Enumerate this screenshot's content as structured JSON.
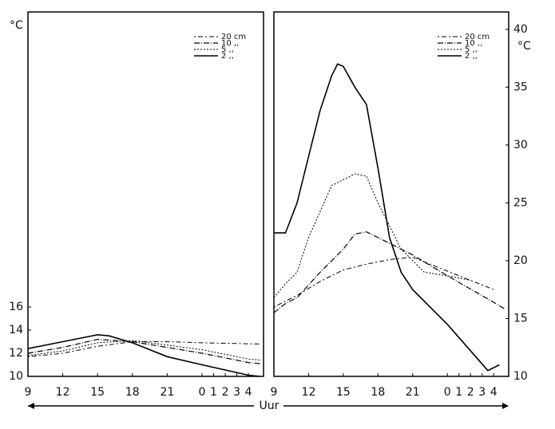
{
  "chart_data": [
    {
      "type": "line",
      "ylabel": "°C",
      "xlabel": "Uur",
      "xlim": [
        9,
        29.3
      ],
      "ylim": [
        10,
        41.5
      ],
      "xticks": [
        9,
        12,
        15,
        18,
        21,
        {
          "value": 24,
          "label": "0"
        },
        {
          "value": 25,
          "label": "1"
        },
        {
          "value": 26,
          "label": "2"
        },
        {
          "value": 27,
          "label": "3"
        },
        {
          "value": 28,
          "label": "4"
        }
      ],
      "yticks": [
        10,
        12,
        14,
        16
      ],
      "series": [
        {
          "name": "20 cm",
          "color": "#000000",
          "x": [
            9,
            12,
            15,
            18,
            21,
            24,
            29
          ],
          "values": [
            11.7,
            12.0,
            12.6,
            13.0,
            13.0,
            12.9,
            12.8
          ]
        },
        {
          "name": "10 ,,",
          "color": "#000000",
          "x": [
            9,
            12,
            15,
            18,
            21,
            24,
            28,
            29
          ],
          "values": [
            12.0,
            12.5,
            13.2,
            13.0,
            12.5,
            12.0,
            11.2,
            11.1
          ]
        },
        {
          "name": "5 ,,",
          "color": "#000000",
          "x": [
            9,
            12,
            15,
            18,
            21,
            24,
            28,
            29
          ],
          "values": [
            11.8,
            12.2,
            12.9,
            13.1,
            12.7,
            12.3,
            11.5,
            11.4
          ]
        },
        {
          "name": "2 ,,",
          "color": "#000000",
          "x": [
            9,
            12,
            15,
            16,
            18,
            21,
            24,
            28,
            29
          ],
          "values": [
            12.4,
            13.0,
            13.6,
            13.5,
            12.9,
            11.7,
            11.0,
            10.1,
            10.0
          ]
        }
      ]
    },
    {
      "type": "line",
      "ylabel": "°C",
      "xlim": [
        9,
        29.3
      ],
      "ylim": [
        10,
        41.5
      ],
      "xticks": [
        9,
        12,
        15,
        18,
        21,
        {
          "value": 24,
          "label": "0"
        },
        {
          "value": 25,
          "label": "1"
        },
        {
          "value": 26,
          "label": "2"
        },
        {
          "value": 27,
          "label": "3"
        },
        {
          "value": 28,
          "label": "4"
        }
      ],
      "yticks": [
        10,
        15,
        20,
        25,
        30,
        35,
        40
      ],
      "series": [
        {
          "name": "20 cm",
          "color": "#000000",
          "x": [
            9,
            11,
            13,
            15,
            17,
            19,
            21,
            23,
            25,
            28
          ],
          "values": [
            16,
            17,
            18.2,
            19.2,
            19.7,
            20.1,
            20.3,
            19.5,
            18.7,
            17.5
          ]
        },
        {
          "name": "10 ,,",
          "color": "#000000",
          "x": [
            9,
            10,
            11,
            13,
            15,
            16,
            17,
            18,
            21,
            24,
            28,
            29
          ],
          "values": [
            15.5,
            16.3,
            16.8,
            19,
            21,
            22.3,
            22.5,
            22,
            20.5,
            18.7,
            16.4,
            15.8
          ]
        },
        {
          "name": "5 ,,",
          "color": "#000000",
          "x": [
            9,
            10,
            11,
            12,
            14,
            16,
            17,
            18,
            20,
            22,
            24,
            26
          ],
          "values": [
            16.8,
            18,
            19,
            22,
            26.5,
            27.5,
            27.3,
            25,
            21,
            19,
            18.7,
            18.3
          ]
        },
        {
          "name": "2 ,,",
          "color": "#000000",
          "x": [
            9,
            10,
            11,
            12,
            13,
            14,
            14.5,
            15,
            16,
            17,
            18,
            19,
            20,
            21,
            24,
            27.5,
            28.5
          ],
          "values": [
            22.4,
            22.4,
            25,
            29,
            33,
            36,
            37,
            36.8,
            35,
            33.5,
            28,
            22,
            19,
            17.5,
            14.5,
            10.5,
            11
          ]
        }
      ]
    }
  ]
}
